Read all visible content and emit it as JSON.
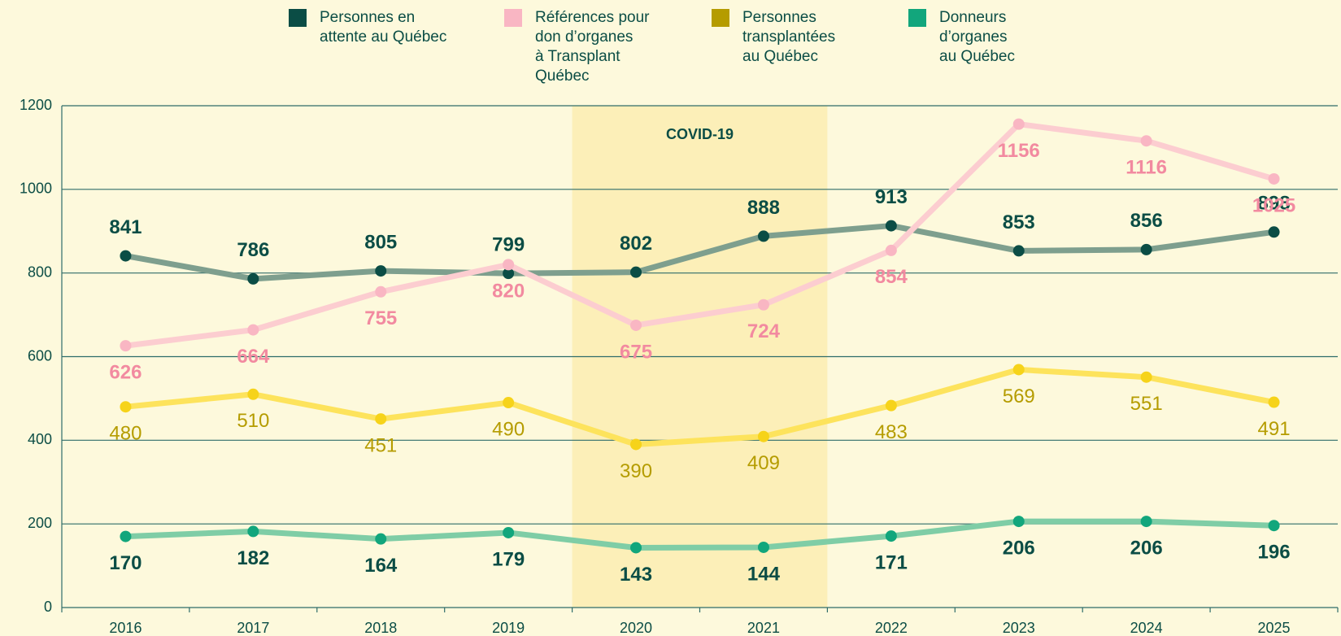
{
  "chart_data": {
    "type": "line",
    "categories": [
      "2016",
      "2017",
      "2018",
      "2019",
      "2020",
      "2021",
      "2022",
      "2023",
      "2024",
      "2025"
    ],
    "ylim": [
      0,
      1200
    ],
    "yticks": [
      0,
      200,
      400,
      600,
      800,
      1000,
      1200
    ],
    "grid": true,
    "annotation": {
      "text": "COVID-19",
      "from": "2020",
      "to": "2021",
      "color": "#fcefb8"
    },
    "series": [
      {
        "name": "Personnes en\nattente au Québec",
        "color": "#0b4d45",
        "line_color": "#7e9f8e",
        "label_color": "#0b4d45",
        "label_position": "above",
        "values": [
          841,
          786,
          805,
          799,
          802,
          888,
          913,
          853,
          856,
          898
        ]
      },
      {
        "name": "Références pour\ndon d’organes\nà Transplant\nQuébec",
        "color": "#f9b6c3",
        "line_color": "#fccdd0",
        "label_color": "#f28aa0",
        "label_position": "below",
        "values": [
          626,
          664,
          755,
          820,
          675,
          724,
          854,
          1156,
          1116,
          1025
        ]
      },
      {
        "name": "Personnes\ntransplantées\nau Québec",
        "color": "#b59c00",
        "line_color": "#fde35c",
        "label_color": "#b59c00",
        "label_position": "below",
        "values": [
          480,
          510,
          451,
          490,
          390,
          409,
          483,
          569,
          551,
          491
        ]
      },
      {
        "name": "Donneurs\nd’organes\nau Québec",
        "color": "#12a67c",
        "line_color": "#7fcda6",
        "label_color": "#0b4d45",
        "label_position": "below",
        "values": [
          170,
          182,
          164,
          179,
          143,
          144,
          171,
          206,
          206,
          196
        ]
      }
    ]
  }
}
